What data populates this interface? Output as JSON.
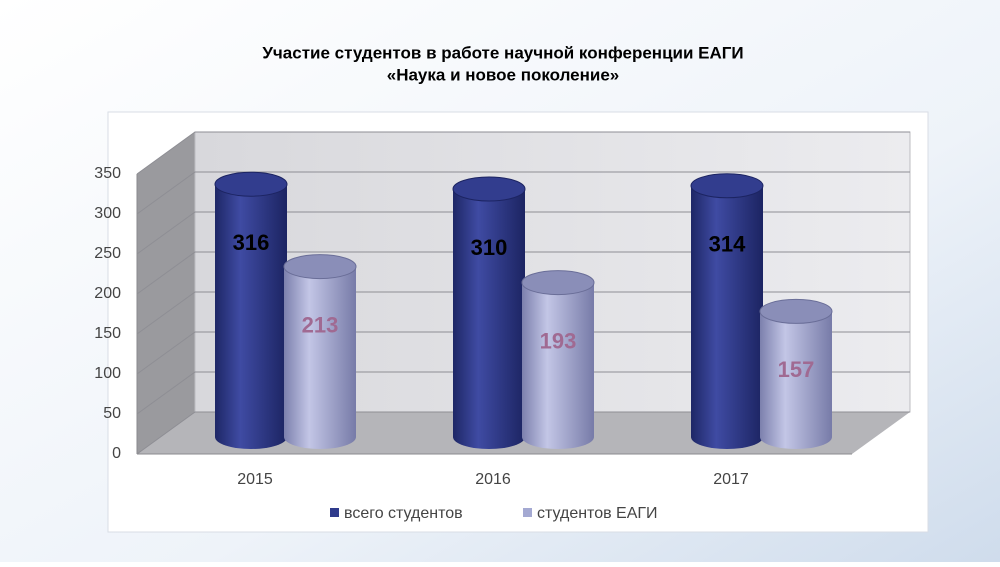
{
  "chart_data": {
    "type": "bar3d",
    "title": [
      "Участие студентов в работе научной конференции ЕАГИ",
      "«Наука и новое поколение»"
    ],
    "categories": [
      "2015",
      "2016",
      "2017"
    ],
    "series": [
      {
        "name": "всего студентов",
        "color": "#2f3b8c",
        "values": [
          316,
          310,
          314
        ]
      },
      {
        "name": "студентов ЕАГИ",
        "color": "#a4a9d2",
        "values": [
          213,
          193,
          157
        ]
      }
    ],
    "ylim": [
      0,
      350
    ],
    "yticks": [
      0,
      50,
      100,
      150,
      200,
      250,
      300,
      350
    ],
    "grid": true,
    "legend": "bottom"
  }
}
